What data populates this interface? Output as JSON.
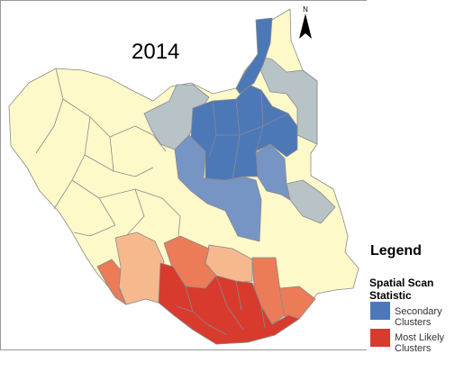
{
  "map": {
    "year_label": "2014",
    "colors": {
      "background_region": "#fdf9c9",
      "secondary_cluster": "#4c78b8",
      "secondary_light": "#7694c4",
      "grey_blue": "#b7c3c6",
      "most_likely": "#d93a2e",
      "orange": "#ec7b58",
      "light_orange": "#f6b98e",
      "boundary": "#8a8a8a"
    }
  },
  "legend": {
    "title": "Legend",
    "subtitle": "Spatial Scan Statistic",
    "items": [
      {
        "label": "Secondary Clusters",
        "color": "#4c78b8"
      },
      {
        "label": "Most Likely Clusters",
        "color": "#d93a2e"
      }
    ]
  },
  "north_arrow": {
    "label": "N",
    "icon": "north-arrow-icon"
  }
}
